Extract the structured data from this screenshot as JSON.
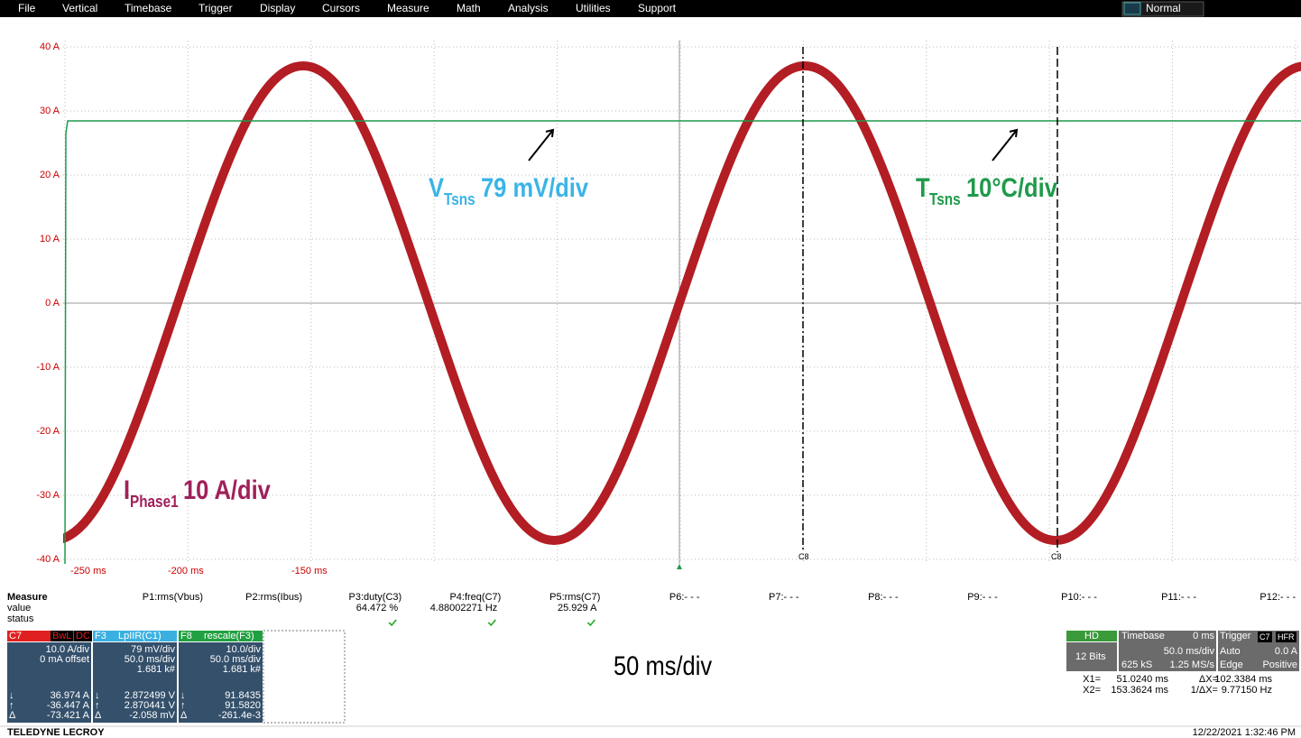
{
  "menu": [
    "File",
    "Vertical",
    "Timebase",
    "Trigger",
    "Display",
    "Cursors",
    "Measure",
    "Math",
    "Analysis",
    "Utilities",
    "Support"
  ],
  "mode": "Normal",
  "y_labels": [
    "40 A",
    "30 A",
    "20 A",
    "10 A",
    "0 A",
    "-10 A",
    "-20 A",
    "-30 A",
    "-40 A"
  ],
  "x_labels": [
    "-250 ms",
    "-200 ms",
    "-150 ms"
  ],
  "cursor_labels": [
    "C8",
    "C8"
  ],
  "annotations": [
    {
      "main": "V",
      "sub": "Tsns",
      "rest": "79 mV/div"
    },
    {
      "main": "T",
      "sub": "Tsns",
      "rest": "10°C/div"
    },
    {
      "main": "I",
      "sub": "Phase1",
      "rest": "10 A/div"
    }
  ],
  "measure": {
    "header": [
      "Measure",
      "P1:rms(Vbus)",
      "P2:rms(Ibus)",
      "P3:duty(C3)",
      "P4:freq(C7)",
      "P5:rms(C7)",
      "P6:- - -",
      "P7:- - -",
      "P8:- - -",
      "P9:- - -",
      "P10:- - -",
      "P11:- - -",
      "P12:- - -"
    ],
    "value_label": "value",
    "values": [
      "64.472 %",
      "4.88002271 Hz",
      "25.929 A"
    ],
    "status_label": "status"
  },
  "channels": [
    {
      "id": "C7",
      "tags": [
        "BwL",
        "DC"
      ],
      "scale": [
        "10.0 A/div",
        "0 mA offset"
      ],
      "stats": [
        {
          "sym": "↓",
          "val": "36.974 A"
        },
        {
          "sym": "↑",
          "val": "-36.447 A"
        },
        {
          "sym": "Δ",
          "val": "-73.421 A"
        }
      ]
    },
    {
      "id": "F3",
      "tags": [
        "LpIIR(C1)"
      ],
      "scale": [
        "79 mV/div",
        "50.0 ms/div",
        "1.681 k#"
      ],
      "stats": [
        {
          "sym": "↓",
          "val": "2.872499 V"
        },
        {
          "sym": "↑",
          "val": "2.870441 V"
        },
        {
          "sym": "Δ",
          "val": "-2.058 mV"
        }
      ]
    },
    {
      "id": "F8",
      "tags": [
        "rescale(F3)"
      ],
      "scale": [
        "10.0/div",
        "50.0 ms/div",
        "1.681 k#"
      ],
      "stats": [
        {
          "sym": "↓",
          "val": "91.8435"
        },
        {
          "sym": "↑",
          "val": "91.5820"
        },
        {
          "sym": "Δ",
          "val": "-261.4e-3"
        }
      ]
    }
  ],
  "acq": {
    "hd": "HD",
    "bits": "12 Bits",
    "timebase": "Timebase",
    "delay": "0 ms",
    "tdiv": "50.0 ms/div",
    "samples": "625 kS",
    "rate": "1.25 MS/s",
    "trigger": "Trigger",
    "trig_src": "C7",
    "trig_tag": "HFR",
    "trig_mode": "Auto",
    "trig_level": "0.0 A",
    "trig_type": "Edge",
    "trig_slope": "Positive"
  },
  "cursors": [
    "X1=",
    "51.0240 ms",
    "ΔX=",
    "102.3384 ms",
    "X2=",
    "153.3624 ms",
    "1/ΔX=",
    "9.77150 Hz"
  ],
  "timebase_label": "50 ms/div",
  "footer": {
    "brand": "TELEDYNE LECROY",
    "timestamp": "12/22/2021 1:32:46 PM"
  }
}
